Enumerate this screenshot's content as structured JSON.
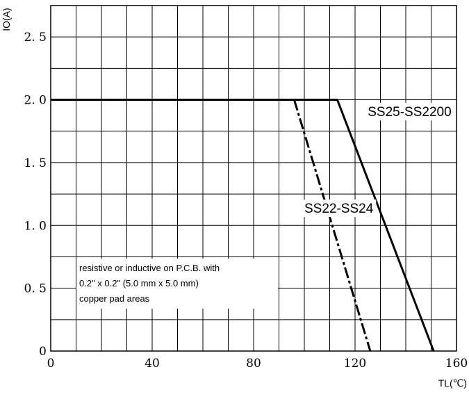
{
  "chart_data": {
    "type": "line",
    "title": "",
    "xlabel": "TL(℃)",
    "ylabel": "IO(A)",
    "xlim": [
      0,
      160
    ],
    "ylim": [
      0,
      2.75
    ],
    "grid": true,
    "x_ticks": [
      0,
      40,
      80,
      120,
      160
    ],
    "x_tick_labels": [
      "0",
      "40",
      "80",
      "120",
      "160"
    ],
    "y_ticks": [
      0,
      0.5,
      1.0,
      1.5,
      2.0,
      2.5
    ],
    "y_tick_labels": [
      "0",
      "0. 5",
      "1. 0",
      "1. 5",
      "2. 0",
      "2. 5"
    ],
    "grid_x_step": 10,
    "grid_y_step": 0.25,
    "series": [
      {
        "name": "SS25-SS2200",
        "points": [
          [
            0,
            2.0
          ],
          [
            113,
            2.0
          ],
          [
            151,
            0
          ]
        ],
        "line_style": "solid",
        "color": "#000000",
        "label_anchor": [
          125,
          1.87
        ]
      },
      {
        "name": "SS22-SS24",
        "points": [
          [
            96,
            2.0
          ],
          [
            126,
            0
          ]
        ],
        "line_style": "dash-dot",
        "color": "#000000",
        "label_anchor": [
          100,
          1.1
        ]
      }
    ],
    "annotation": {
      "lines": [
        "resistive or inductive on P.C.B. with",
        "0.2\" x 0.2\" (5.0 mm x 5.0 mm)",
        "copper pad areas"
      ]
    }
  }
}
